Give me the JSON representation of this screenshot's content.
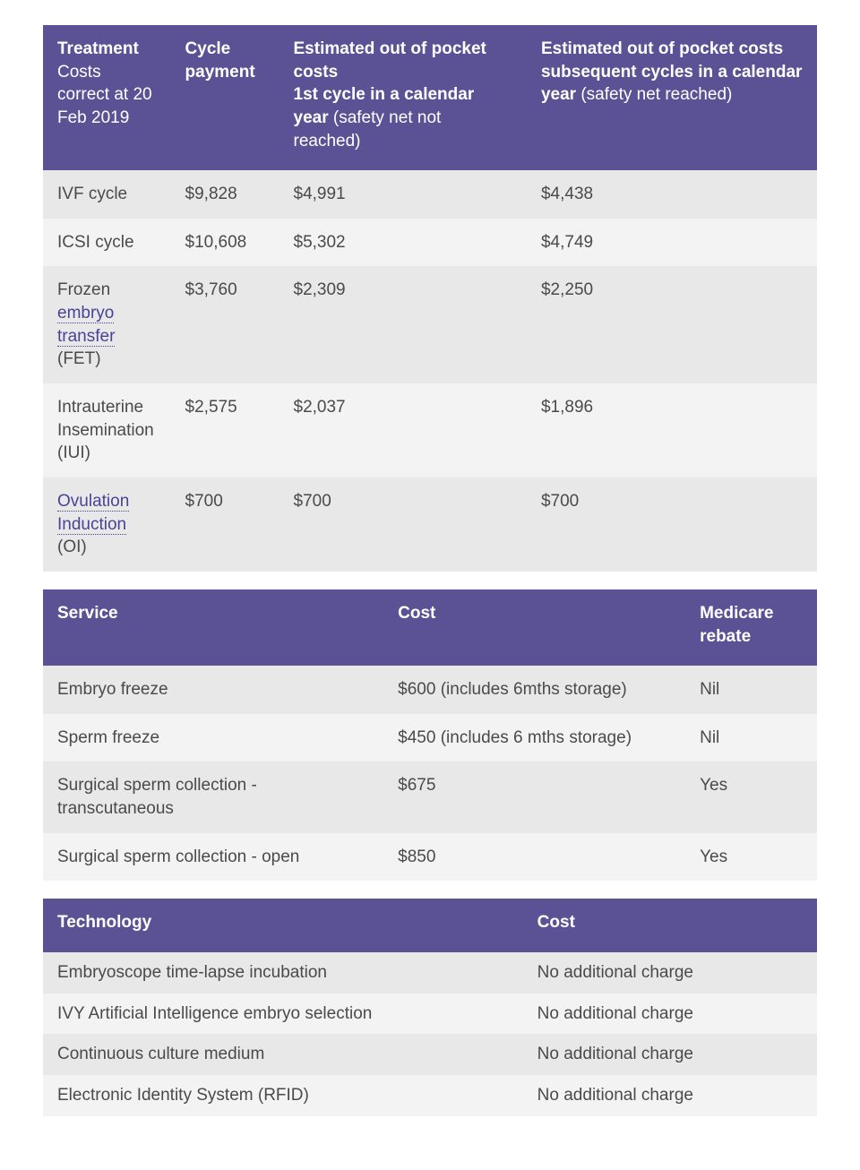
{
  "colors": {
    "header_bg": "#5b5296",
    "header_text": "#ffffff",
    "row_odd_bg": "#e8e8e8",
    "row_even_bg": "#f3f3f3",
    "body_text": "#4a4a4a",
    "link_text": "#4a4296"
  },
  "treatment_table": {
    "type": "table",
    "columns": [
      {
        "bold": "Treatment",
        "sub": "Costs correct at 20 Feb 2019"
      },
      {
        "bold": "Cycle payment",
        "sub": ""
      },
      {
        "bold": "Estimated out of pocket costs",
        "sub_bold": "1st cycle in a calendar year",
        "sub_plain": " (safety net not reached)"
      },
      {
        "bold": "Estimated out of pocket costs",
        "sub_bold": "subsequent cycles in a calendar year",
        "sub_plain": " (safety net reached)"
      }
    ],
    "rows": [
      {
        "name_pre": "IVF cycle",
        "link": "",
        "name_post": "",
        "cycle": "$9,828",
        "first": "$4,991",
        "subseq": "$4,438"
      },
      {
        "name_pre": "ICSI cycle",
        "link": "",
        "name_post": "",
        "cycle": "$10,608",
        "first": "$5,302",
        "subseq": "$4,749"
      },
      {
        "name_pre": "Frozen ",
        "link": "embryo transfer",
        "name_post": " (FET)",
        "cycle": "$3,760",
        "first": "$2,309",
        "subseq": "$2,250"
      },
      {
        "name_pre": "Intrauterine Insemination (IUI)",
        "link": "",
        "name_post": "",
        "cycle": "$2,575",
        "first": "$2,037",
        "subseq": "$1,896"
      },
      {
        "name_pre": "",
        "link": "Ovulation Induction",
        "name_post": " (OI)",
        "cycle": "$700",
        "first": "$700",
        "subseq": "$700"
      }
    ]
  },
  "service_table": {
    "type": "table",
    "columns": [
      "Service",
      "Cost",
      "Medicare rebate"
    ],
    "rows": [
      [
        "Embryo freeze",
        "$600 (includes 6mths storage)",
        "Nil"
      ],
      [
        "Sperm freeze",
        "$450 (includes 6 mths storage)",
        "Nil"
      ],
      [
        "Surgical sperm collection - transcutaneous",
        "$675",
        "Yes"
      ],
      [
        "Surgical sperm collection - open",
        "$850",
        "Yes"
      ]
    ]
  },
  "technology_table": {
    "type": "table",
    "columns": [
      "Technology",
      "Cost"
    ],
    "rows": [
      [
        "Embryoscope time-lapse incubation",
        "No additional charge"
      ],
      [
        "IVY Artificial Intelligence embryo selection",
        "No additional charge"
      ],
      [
        "Continuous culture medium",
        "No additional charge"
      ],
      [
        "Electronic Identity System (RFID)",
        "No additional charge"
      ]
    ]
  }
}
